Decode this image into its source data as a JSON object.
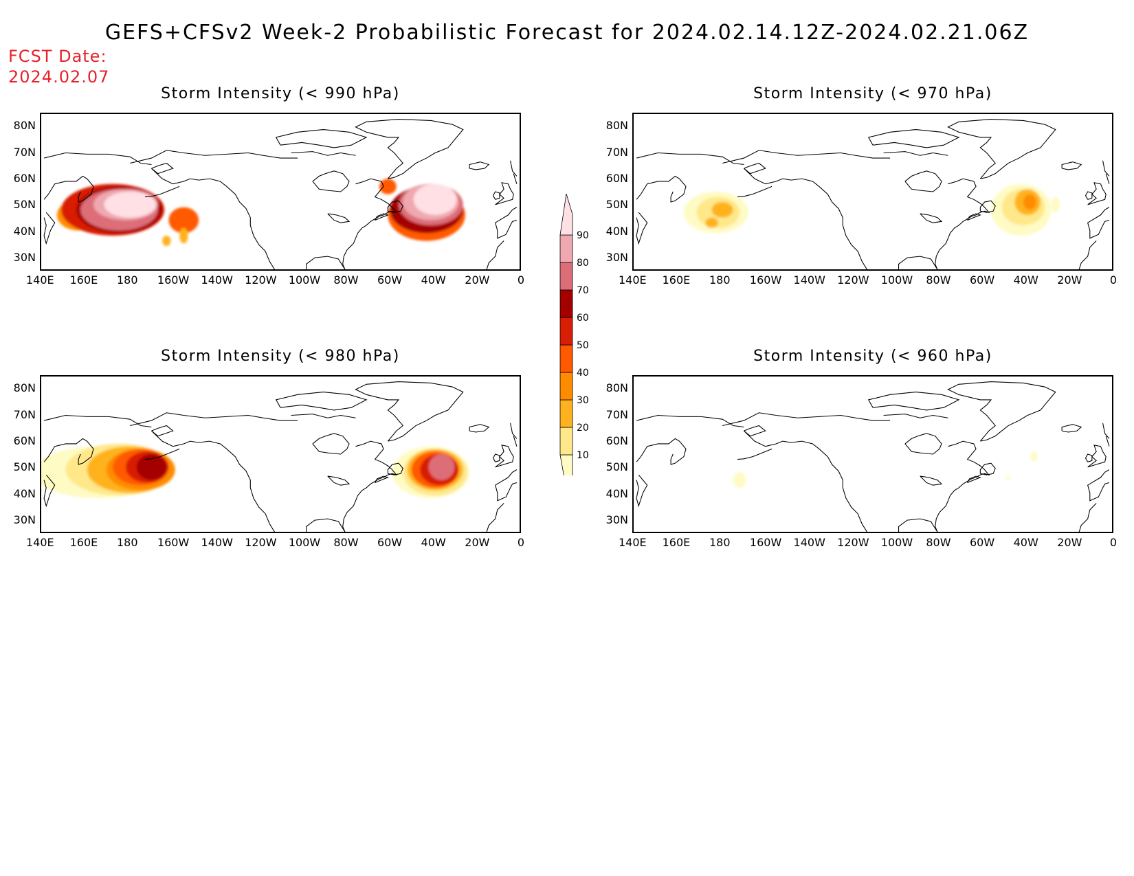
{
  "title": "GEFS+CFSv2 Week-2 Probabilistic Forecast for 2024.02.14.12Z-2024.02.21.06Z",
  "fcst_label": "FCST Date:",
  "fcst_date": "2024.02.07",
  "lon_ticks": [
    "140E",
    "160E",
    "180",
    "160W",
    "140W",
    "120W",
    "100W",
    "80W",
    "60W",
    "40W",
    "20W",
    "0"
  ],
  "lat_ticks": [
    "80N",
    "70N",
    "60N",
    "50N",
    "40N",
    "30N"
  ],
  "panels": [
    {
      "id": "p990",
      "title": "Storm Intensity (< 990 hPa)"
    },
    {
      "id": "p970",
      "title": "Storm Intensity (< 970 hPa)"
    },
    {
      "id": "p980",
      "title": "Storm Intensity (< 980 hPa)"
    },
    {
      "id": "p960",
      "title": "Storm Intensity (< 960 hPa)"
    }
  ],
  "colorbar": {
    "levels": [
      "10",
      "20",
      "30",
      "40",
      "50",
      "60",
      "70",
      "80",
      "90"
    ],
    "colors": [
      "#fffbc4",
      "#ffe88a",
      "#ffb21f",
      "#ff8c00",
      "#ff5a00",
      "#d81e05",
      "#a40000",
      "#dc6e78",
      "#f0a8b0",
      "#ffe0e4"
    ]
  }
}
